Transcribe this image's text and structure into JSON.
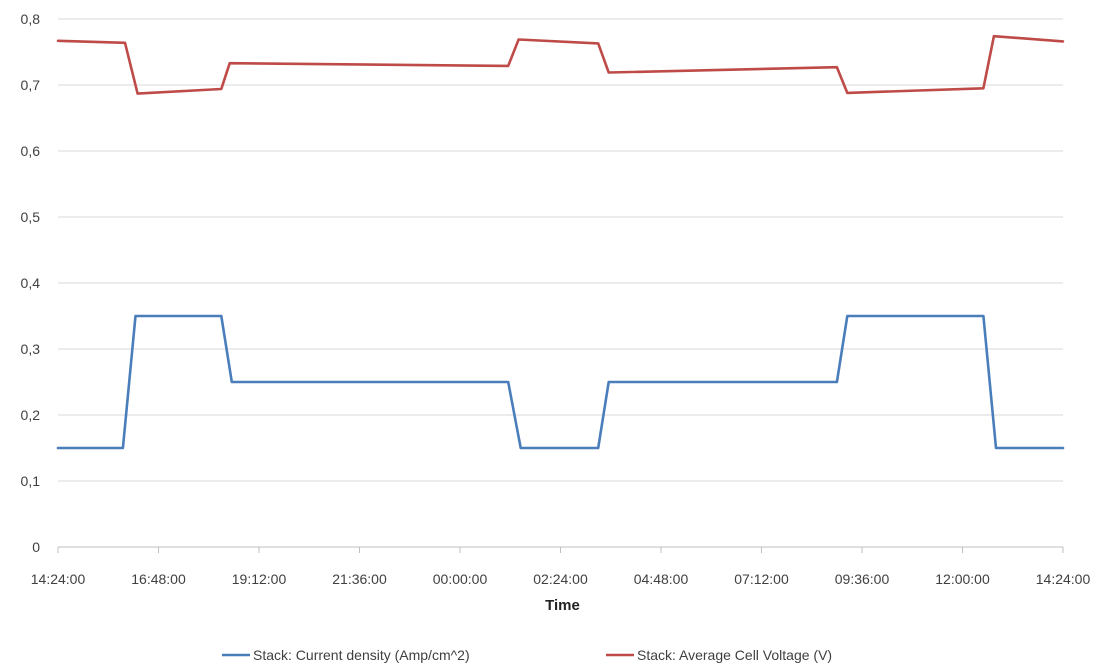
{
  "chart_data": {
    "type": "line",
    "xlabel": "Time",
    "ylabel": "",
    "title": "",
    "ylim": [
      0,
      0.8
    ],
    "y_ticks": [
      "0",
      "0,1",
      "0,2",
      "0,3",
      "0,4",
      "0,5",
      "0,6",
      "0,7",
      "0,8"
    ],
    "y_tick_values": [
      0,
      0.1,
      0.2,
      0.3,
      0.4,
      0.5,
      0.6,
      0.7,
      0.8
    ],
    "x_ticks": [
      "14:24:00",
      "16:48:00",
      "19:12:00",
      "21:36:00",
      "00:00:00",
      "02:24:00",
      "04:48:00",
      "07:12:00",
      "09:36:00",
      "12:00:00",
      "14:24:00"
    ],
    "x_range_hours": [
      0,
      24
    ],
    "grid": true,
    "legend_position": "bottom",
    "series": [
      {
        "name": "Stack: Current density (Amp/cm^2)",
        "color": "#4a7ebb",
        "x": [
          0,
          1.55,
          1.85,
          3.9,
          4.15,
          10.75,
          11.05,
          12.9,
          13.15,
          18.6,
          18.85,
          22.1,
          22.4,
          24
        ],
        "values": [
          0.15,
          0.15,
          0.35,
          0.35,
          0.25,
          0.25,
          0.15,
          0.15,
          0.25,
          0.25,
          0.35,
          0.35,
          0.15,
          0.15
        ]
      },
      {
        "name": "Stack: Average Cell Voltage (V)",
        "color": "#be4b48",
        "x": [
          0,
          1.6,
          1.9,
          3.9,
          4.1,
          10.75,
          11.0,
          12.9,
          13.15,
          18.6,
          18.85,
          22.1,
          22.35,
          24
        ],
        "values": [
          0.767,
          0.764,
          0.687,
          0.694,
          0.733,
          0.729,
          0.769,
          0.763,
          0.719,
          0.727,
          0.688,
          0.695,
          0.774,
          0.766
        ]
      }
    ]
  }
}
